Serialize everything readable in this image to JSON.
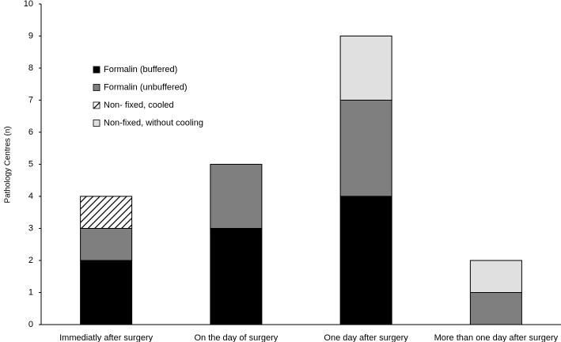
{
  "chart_data": {
    "type": "stacked_bar",
    "y_label": "Pathology Centres (n)",
    "categories": [
      "Immediatly after surgery",
      "On the day of surgery",
      "One day after surgery",
      "More than one day after surgery"
    ],
    "series": [
      {
        "name": "Formalin (buffered)",
        "color": "#000000",
        "values": [
          2,
          3,
          4,
          0
        ]
      },
      {
        "name": "Formalin (unbuffered)",
        "color": "#7f7f7f",
        "values": [
          1,
          2,
          3,
          1
        ]
      },
      {
        "name": "Non- fixed, cooled",
        "color": "#000000",
        "pattern": "hatch",
        "values": [
          1,
          0,
          0,
          0
        ]
      },
      {
        "name": "Non-fixed, without cooling",
        "color": "#e0e0e0",
        "values": [
          0,
          0,
          2,
          1
        ]
      }
    ],
    "ylim": [
      0,
      10
    ],
    "yticks": [
      0,
      1,
      2,
      3,
      4,
      5,
      6,
      7,
      8,
      9,
      10
    ],
    "grid": false,
    "legend": "upper left"
  }
}
